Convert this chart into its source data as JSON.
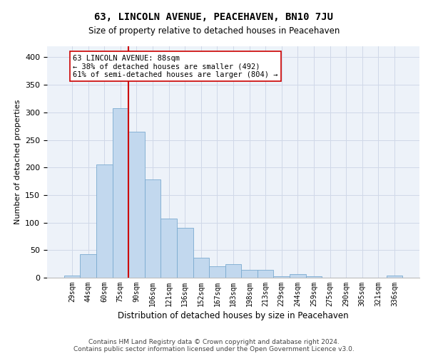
{
  "title": "63, LINCOLN AVENUE, PEACEHAVEN, BN10 7JU",
  "subtitle": "Size of property relative to detached houses in Peacehaven",
  "xlabel": "Distribution of detached houses by size in Peacehaven",
  "ylabel": "Number of detached properties",
  "footer_line1": "Contains HM Land Registry data © Crown copyright and database right 2024.",
  "footer_line2": "Contains public sector information licensed under the Open Government Licence v3.0.",
  "bar_labels": [
    "29sqm",
    "44sqm",
    "60sqm",
    "75sqm",
    "90sqm",
    "106sqm",
    "121sqm",
    "136sqm",
    "152sqm",
    "167sqm",
    "183sqm",
    "198sqm",
    "213sqm",
    "229sqm",
    "244sqm",
    "259sqm",
    "275sqm",
    "290sqm",
    "305sqm",
    "321sqm",
    "336sqm"
  ],
  "bar_values": [
    4,
    43,
    205,
    307,
    265,
    178,
    107,
    91,
    36,
    21,
    25,
    14,
    14,
    3,
    6,
    3,
    0,
    0,
    0,
    0,
    4
  ],
  "bar_color": "#c2d8ee",
  "bar_edgecolor": "#7aaad0",
  "vline_index": 4,
  "annotation_line1": "63 LINCOLN AVENUE: 88sqm",
  "annotation_line2": "← 38% of detached houses are smaller (492)",
  "annotation_line3": "61% of semi-detached houses are larger (804) →",
  "ylim": [
    0,
    420
  ],
  "yticks": [
    0,
    50,
    100,
    150,
    200,
    250,
    300,
    350,
    400
  ],
  "plot_bg": "#edf2f9",
  "grid_color": "#d0d8e8",
  "red_color": "#cc0000",
  "title_fontsize": 10,
  "subtitle_fontsize": 8.5,
  "ylabel_fontsize": 8,
  "xlabel_fontsize": 8.5,
  "tick_fontsize": 7,
  "footer_fontsize": 6.5,
  "ann_fontsize": 7.5
}
